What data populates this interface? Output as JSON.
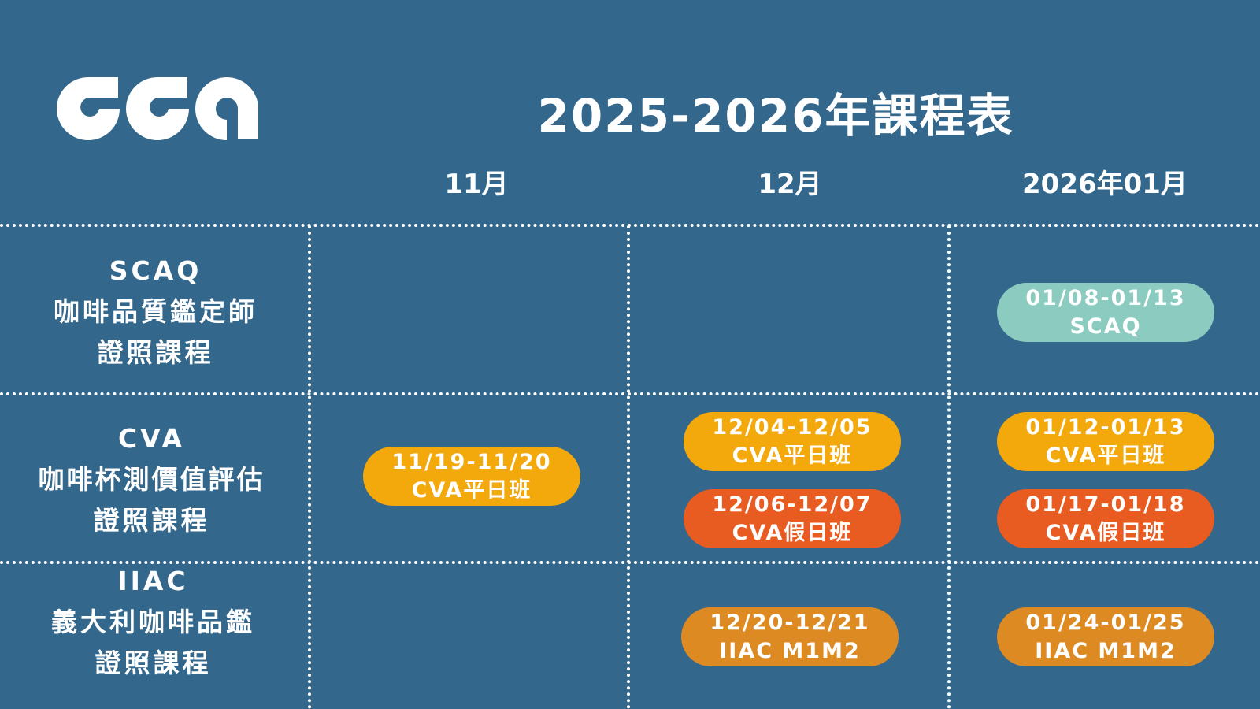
{
  "logo": {
    "text": "CCA"
  },
  "title": "2025-2026年課程表",
  "months": [
    "11月",
    "12月",
    "2026年01月"
  ],
  "rows": [
    {
      "code": "SCAQ",
      "name": "咖啡品質鑑定師",
      "suffix": "證照課程"
    },
    {
      "code": "CVA",
      "name": "咖啡杯測價值評估",
      "suffix": "證照課程"
    },
    {
      "code": "IIAC",
      "name": "義大利咖啡品鑑",
      "suffix": "證照課程"
    }
  ],
  "courses": {
    "scaq_jan": {
      "dates": "01/08-01/13",
      "label": "SCAQ",
      "color": "#8ccbbf"
    },
    "cva_nov_weekday": {
      "dates": "11/19-11/20",
      "label": "CVA平日班",
      "color": "#f3a90c"
    },
    "cva_dec_weekday": {
      "dates": "12/04-12/05",
      "label": "CVA平日班",
      "color": "#f3a90c"
    },
    "cva_dec_weekend": {
      "dates": "12/06-12/07",
      "label": "CVA假日班",
      "color": "#e85c22"
    },
    "cva_jan_weekday": {
      "dates": "01/12-01/13",
      "label": "CVA平日班",
      "color": "#f3a90c"
    },
    "cva_jan_weekend": {
      "dates": "01/17-01/18",
      "label": "CVA假日班",
      "color": "#e85c22"
    },
    "iiac_dec": {
      "dates": "12/20-12/21",
      "label": "IIAC M1M2",
      "color": "#de8a22"
    },
    "iiac_jan": {
      "dates": "01/24-01/25",
      "label": "IIAC M1M2",
      "color": "#de8a22"
    }
  }
}
